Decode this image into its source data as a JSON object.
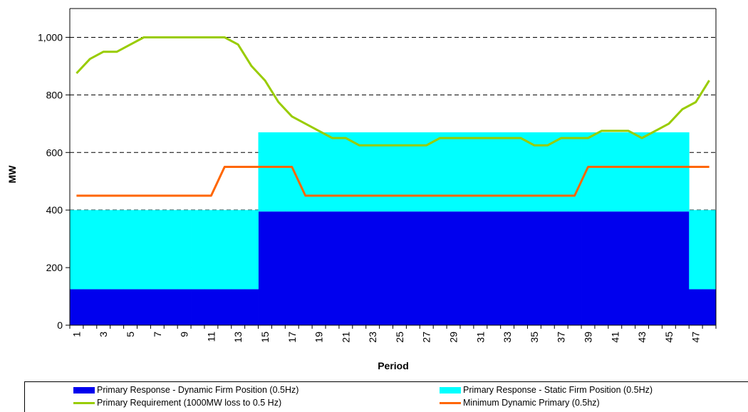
{
  "chart_data": {
    "type": "area",
    "xlabel": "Period",
    "ylabel": "MW",
    "ylim": [
      0,
      1100
    ],
    "y_ticks": [
      0,
      200,
      400,
      600,
      800,
      1000
    ],
    "y_tick_labels": [
      "0",
      "200",
      "400",
      "600",
      "800",
      "1,000"
    ],
    "x": [
      1,
      2,
      3,
      4,
      5,
      6,
      7,
      8,
      9,
      10,
      11,
      12,
      13,
      14,
      15,
      16,
      17,
      18,
      19,
      20,
      21,
      22,
      23,
      24,
      25,
      26,
      27,
      28,
      29,
      30,
      31,
      32,
      33,
      34,
      35,
      36,
      37,
      38,
      39,
      40,
      41,
      42,
      43,
      44,
      45,
      46,
      47,
      48
    ],
    "x_tick_labels": [
      "1",
      "3",
      "5",
      "7",
      "9",
      "11",
      "13",
      "15",
      "17",
      "19",
      "21",
      "23",
      "25",
      "27",
      "29",
      "31",
      "33",
      "35",
      "37",
      "39",
      "41",
      "43",
      "45",
      "47"
    ],
    "grid": "horizontal dashed",
    "legend_position": "bottom",
    "series": [
      {
        "name": "Primary Response - Dynamic Firm Position (0.5Hz)",
        "kind": "stacked-bar",
        "color": "#0000ee",
        "values": [
          125,
          125,
          125,
          125,
          125,
          125,
          125,
          125,
          125,
          125,
          125,
          125,
          125,
          125,
          395,
          395,
          395,
          395,
          395,
          395,
          395,
          395,
          395,
          395,
          395,
          395,
          395,
          395,
          395,
          395,
          395,
          395,
          395,
          395,
          395,
          395,
          395,
          395,
          395,
          395,
          395,
          395,
          395,
          395,
          395,
          395,
          125,
          125
        ]
      },
      {
        "name": "Primary Response - Static Firm Position (0.5Hz)",
        "kind": "stacked-bar",
        "color": "#00ffff",
        "values": [
          275,
          275,
          275,
          275,
          275,
          275,
          275,
          275,
          275,
          275,
          275,
          275,
          275,
          275,
          275,
          275,
          275,
          275,
          275,
          275,
          275,
          275,
          275,
          275,
          275,
          275,
          275,
          275,
          275,
          275,
          275,
          275,
          275,
          275,
          275,
          275,
          275,
          275,
          275,
          275,
          275,
          275,
          275,
          275,
          275,
          275,
          275,
          275
        ]
      },
      {
        "name": "Primary Requirement (1000MW loss to 0.5 Hz)",
        "kind": "line",
        "color": "#99cc00",
        "values": [
          875,
          925,
          950,
          950,
          975,
          1000,
          1000,
          1000,
          1000,
          1000,
          1000,
          1000,
          975,
          900,
          850,
          775,
          725,
          700,
          675,
          650,
          650,
          625,
          625,
          625,
          625,
          625,
          625,
          650,
          650,
          650,
          650,
          650,
          650,
          650,
          625,
          625,
          650,
          650,
          650,
          675,
          675,
          675,
          650,
          675,
          700,
          750,
          775,
          850
        ]
      },
      {
        "name": "Minimum Dynamic Primary (0.5hz)",
        "kind": "line",
        "color": "#ff6600",
        "values": [
          450,
          450,
          450,
          450,
          450,
          450,
          450,
          450,
          450,
          450,
          450,
          550,
          550,
          550,
          550,
          550,
          550,
          450,
          450,
          450,
          450,
          450,
          450,
          450,
          450,
          450,
          450,
          450,
          450,
          450,
          450,
          450,
          450,
          450,
          450,
          450,
          450,
          450,
          550,
          550,
          550,
          550,
          550,
          550,
          550,
          550,
          550,
          550
        ]
      }
    ]
  }
}
